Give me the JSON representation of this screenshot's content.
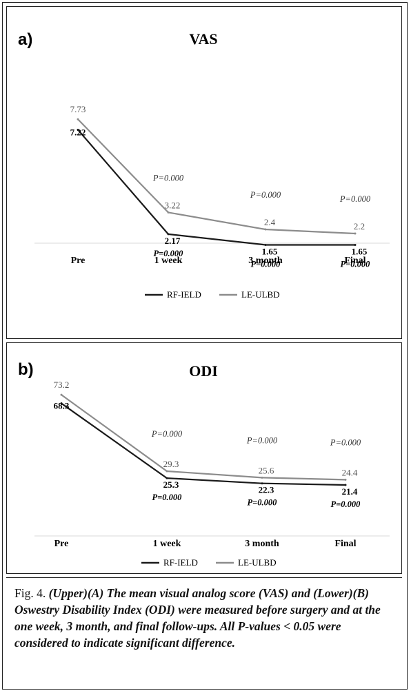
{
  "chart_data": [
    {
      "type": "line",
      "panel_label": "a)",
      "title": "VAS",
      "categories": [
        "Pre",
        "1 week",
        "3 month",
        "Final"
      ],
      "series": [
        {
          "name": "RF-IELD",
          "values": [
            7.22,
            2.17,
            1.65,
            1.65
          ],
          "labels": [
            "7.22",
            "2.17",
            "1.65",
            "1.65"
          ],
          "color": "#1a1a1a"
        },
        {
          "name": "LE-ULBD",
          "values": [
            7.73,
            3.22,
            2.4,
            2.2
          ],
          "labels": [
            "7.73",
            "3.22",
            "2.4",
            "2.2"
          ],
          "color": "#8c8c8c"
        }
      ],
      "p_values_upper": [
        "P=0.000",
        "P=0.000",
        "P=0.000"
      ],
      "p_values_lower": [
        "P=0.000",
        "P=0.000",
        "P=0.000"
      ],
      "ylim": [
        0,
        9
      ],
      "legend_position": "bottom"
    },
    {
      "type": "line",
      "panel_label": "b)",
      "title": "ODI",
      "categories": [
        "Pre",
        "1 week",
        "3 month",
        "Final"
      ],
      "series": [
        {
          "name": "RF-IELD",
          "values": [
            68.3,
            25.3,
            22.3,
            21.4
          ],
          "labels": [
            "68.3",
            "25.3",
            "22.3",
            "21.4"
          ],
          "color": "#1a1a1a"
        },
        {
          "name": "LE-ULBD",
          "values": [
            73.2,
            29.3,
            25.6,
            24.4
          ],
          "labels": [
            "73.2",
            "29.3",
            "25.6",
            "24.4"
          ],
          "color": "#8c8c8c"
        }
      ],
      "p_values_upper": [
        "P=0.000",
        "P=0.000",
        "P=0.000"
      ],
      "p_values_lower": [
        "P=0.000",
        "P=0.000",
        "P=0.000"
      ],
      "ylim": [
        0,
        80
      ],
      "legend_position": "bottom"
    }
  ],
  "caption": {
    "lead": "Fig. 4. ",
    "body": "(Upper)(A) The mean visual analog score (VAS) and (Lower)(B) Oswestry Disability Index (ODI) were measured before surgery and at the one week, 3 month, and final follow-ups. All P-values < 0.05 were considered to indicate significant difference."
  }
}
